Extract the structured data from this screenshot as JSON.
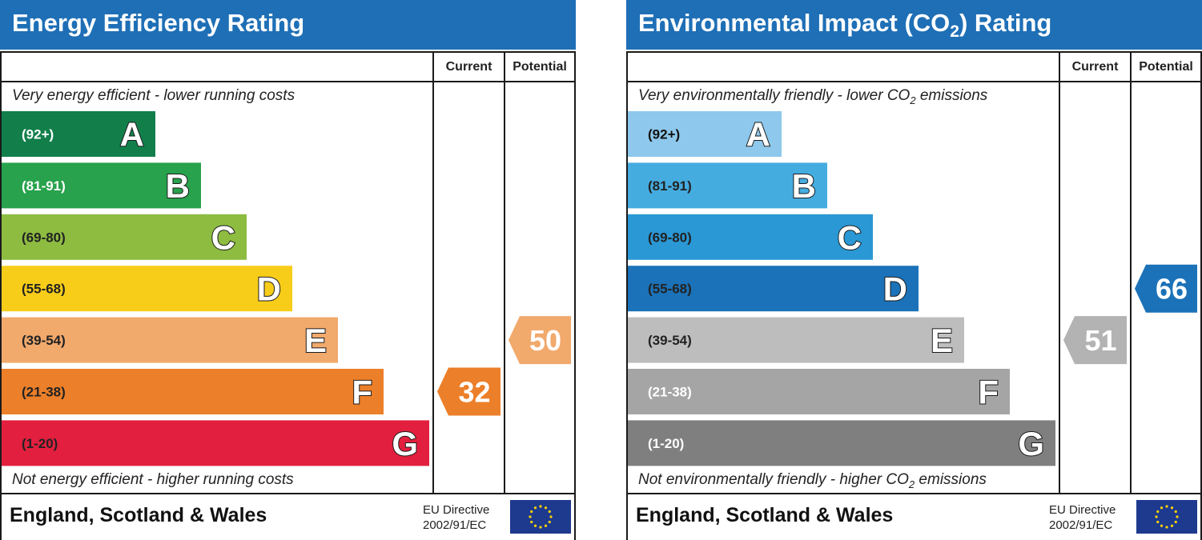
{
  "chart_data": [
    {
      "type": "bar",
      "title": "Energy Efficiency Rating",
      "columns": [
        "Current",
        "Potential"
      ],
      "top_caption": "Very energy efficient - lower running costs",
      "bottom_caption": "Not energy efficient - higher running costs",
      "bands": [
        {
          "range": "(92+)",
          "letter": "A",
          "color": "#127f4b",
          "text_color": "#ffffff"
        },
        {
          "range": "(81-91)",
          "letter": "B",
          "color": "#28a24c",
          "text_color": "#ffffff"
        },
        {
          "range": "(69-80)",
          "letter": "C",
          "color": "#8dbc41",
          "text_color": "#222222"
        },
        {
          "range": "(55-68)",
          "letter": "D",
          "color": "#f8cd1a",
          "text_color": "#222222"
        },
        {
          "range": "(39-54)",
          "letter": "E",
          "color": "#f1a96c",
          "text_color": "#222222"
        },
        {
          "range": "(21-38)",
          "letter": "F",
          "color": "#ec7f29",
          "text_color": "#222222"
        },
        {
          "range": "(1-20)",
          "letter": "G",
          "color": "#e21f3e",
          "text_color": "#222222"
        }
      ],
      "current": {
        "value": 32,
        "band": "F",
        "color": "#ec7f29"
      },
      "potential": {
        "value": 50,
        "band": "E",
        "color": "#f1a96c"
      },
      "footer": {
        "region": "England, Scotland & Wales",
        "directive_line1": "EU Directive",
        "directive_line2": "2002/91/EC"
      }
    },
    {
      "type": "bar",
      "title": "Environmental Impact (CO2) Rating",
      "columns": [
        "Current",
        "Potential"
      ],
      "top_caption": "Very environmentally friendly - lower CO2 emissions",
      "bottom_caption": "Not environmentally friendly - higher CO2 emissions",
      "bands": [
        {
          "range": "(92+)",
          "letter": "A",
          "color": "#8ec8ec",
          "text_color": "#111111"
        },
        {
          "range": "(81-91)",
          "letter": "B",
          "color": "#45ace0",
          "text_color": "#222222"
        },
        {
          "range": "(69-80)",
          "letter": "C",
          "color": "#2a98d5",
          "text_color": "#222222"
        },
        {
          "range": "(55-68)",
          "letter": "D",
          "color": "#1b72b8",
          "text_color": "#222222"
        },
        {
          "range": "(39-54)",
          "letter": "E",
          "color": "#bdbdbd",
          "text_color": "#222222"
        },
        {
          "range": "(21-38)",
          "letter": "F",
          "color": "#a5a5a5",
          "text_color": "#ffffff"
        },
        {
          "range": "(1-20)",
          "letter": "G",
          "color": "#7f7f7f",
          "text_color": "#ffffff"
        }
      ],
      "current": {
        "value": 51,
        "band": "E",
        "color": "#b3b3b3"
      },
      "potential": {
        "value": 66,
        "band": "D",
        "color": "#1b72b8"
      },
      "footer": {
        "region": "England, Scotland & Wales",
        "directive_line1": "EU Directive",
        "directive_line2": "2002/91/EC"
      }
    }
  ]
}
